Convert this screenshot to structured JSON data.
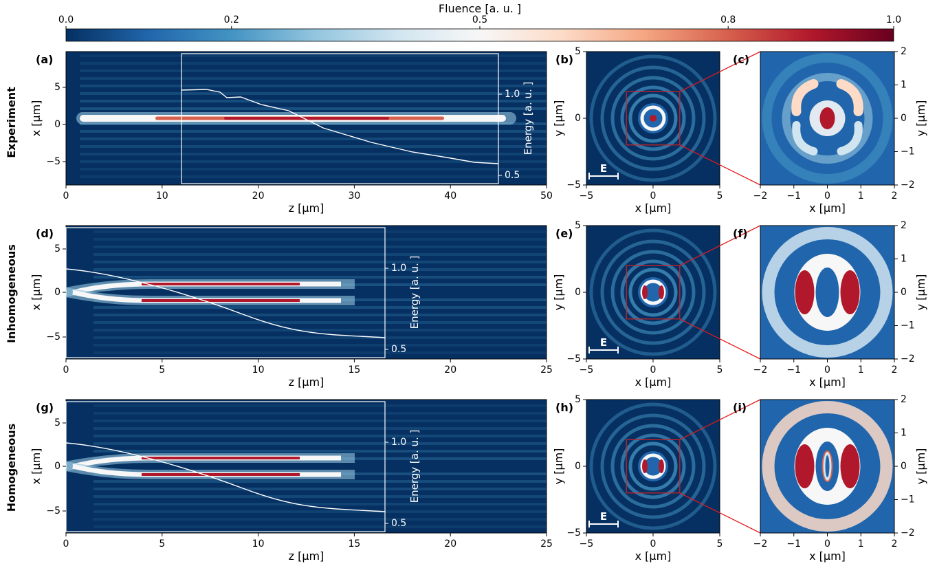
{
  "colorbar": {
    "label": "Fluence [a. u. ]",
    "ticks": [
      "0.0",
      "0.2",
      "0.5",
      "0.8",
      "1.0"
    ],
    "tick_values": [
      0.0,
      0.2,
      0.5,
      0.8,
      1.0
    ],
    "colors": [
      "#053061",
      "#2166ac",
      "#4393c3",
      "#92c5de",
      "#d1e5f0",
      "#f7f7f7",
      "#fddbc7",
      "#f4a582",
      "#d6604d",
      "#b2182b",
      "#67001f"
    ]
  },
  "rows": [
    {
      "row_label": "Experiment",
      "side": {
        "label": "(a)",
        "xlabel": "z [μm]",
        "ylabel": "x [μm]",
        "xticks": [
          "0",
          "10",
          "20",
          "30",
          "40",
          "50"
        ],
        "yticks": [
          "5",
          "0",
          "−5"
        ],
        "energy_label": "Energy [a. u. ]",
        "energy_ticks": [
          "1.0",
          "0.5"
        ]
      },
      "front": {
        "label": "(b)",
        "xlabel": "x [μm]",
        "ylabel": "y [μm]",
        "xticks": [
          "−5",
          "0",
          "5"
        ],
        "yticks": [
          "5",
          "0",
          "−5"
        ],
        "polarization_label": "E"
      },
      "zoom": {
        "label": "(c)",
        "xlabel": "x [μm]",
        "ylabel": "y [μm]",
        "xticks": [
          "−2",
          "−1",
          "0",
          "1",
          "2"
        ],
        "yticks": [
          "2",
          "1",
          "0",
          "−1",
          "−2"
        ]
      }
    },
    {
      "row_label": "Inhomogeneous",
      "side": {
        "label": "(d)",
        "xlabel": "z [μm]",
        "ylabel": "x [μm]",
        "xticks": [
          "0",
          "5",
          "10",
          "15",
          "20",
          "25"
        ],
        "yticks": [
          "5",
          "0",
          "−5"
        ],
        "energy_label": "Energy [a. u. ]",
        "energy_ticks": [
          "1.0",
          "0.5"
        ]
      },
      "front": {
        "label": "(e)",
        "xlabel": "x [μm]",
        "ylabel": "y [μm]",
        "xticks": [
          "−5",
          "0",
          "5"
        ],
        "yticks": [
          "5",
          "0",
          "−5"
        ],
        "polarization_label": "E"
      },
      "zoom": {
        "label": "(f)",
        "xlabel": "x [μm]",
        "ylabel": "y [μm]",
        "xticks": [
          "−2",
          "−1",
          "0",
          "1",
          "2"
        ],
        "yticks": [
          "2",
          "1",
          "0",
          "−1",
          "−2"
        ]
      }
    },
    {
      "row_label": "Homogeneous",
      "side": {
        "label": "(g)",
        "xlabel": "z [μm]",
        "ylabel": "x [μm]",
        "xticks": [
          "0",
          "5",
          "10",
          "15",
          "20",
          "25"
        ],
        "yticks": [
          "5",
          "0",
          "−5"
        ],
        "energy_label": "Energy [a. u. ]",
        "energy_ticks": [
          "1.0",
          "0.5"
        ]
      },
      "front": {
        "label": "(h)",
        "xlabel": "x [μm]",
        "ylabel": "y [μm]",
        "xticks": [
          "−5",
          "0",
          "5"
        ],
        "yticks": [
          "5",
          "0",
          "−5"
        ],
        "polarization_label": "E"
      },
      "zoom": {
        "label": "(i)",
        "xlabel": "x [μm]",
        "ylabel": "y [μm]",
        "xticks": [
          "−2",
          "−1",
          "0",
          "1",
          "2"
        ],
        "yticks": [
          "2",
          "1",
          "0",
          "−1",
          "−2"
        ]
      }
    }
  ]
}
